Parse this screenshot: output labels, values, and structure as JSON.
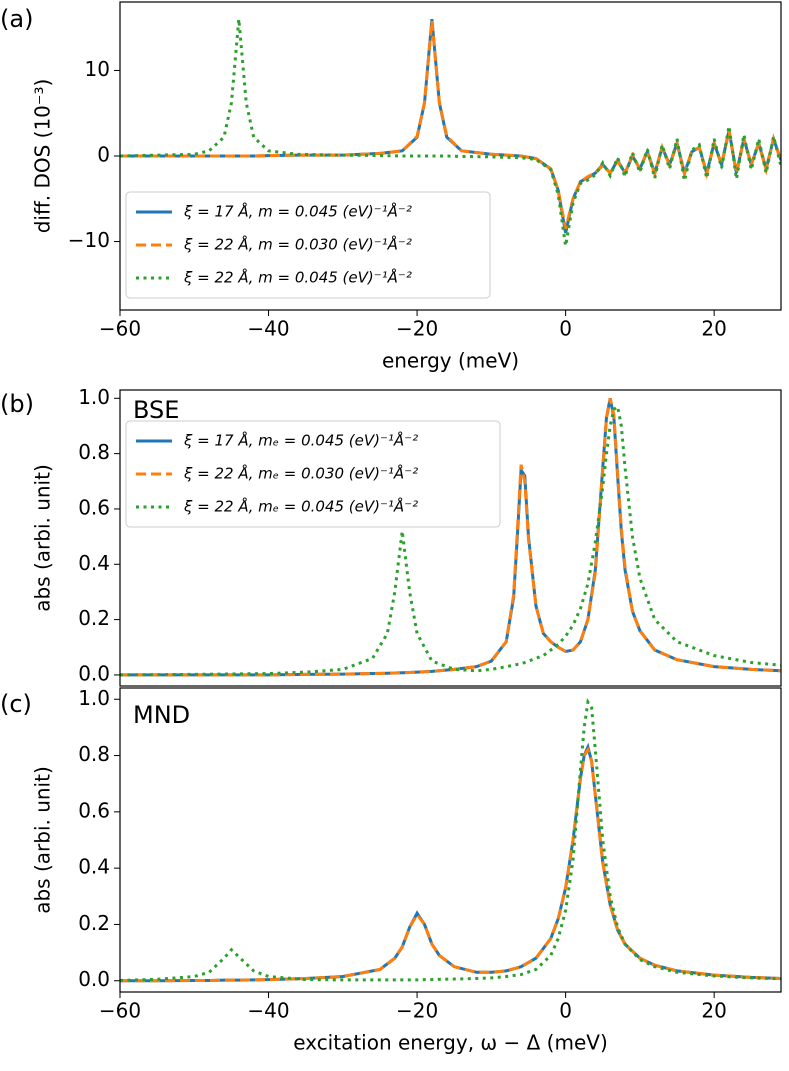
{
  "chart_data": [
    {
      "type": "line",
      "panel_label": "(a)",
      "xlabel": "energy (meV)",
      "ylabel": "diff. DOS (10⁻³)",
      "xlim": [
        -60,
        29
      ],
      "ylim": [
        -18,
        18
      ],
      "xticks": [
        {
          "value": -60,
          "label": "−60"
        },
        {
          "value": -40,
          "label": "−40"
        },
        {
          "value": -20,
          "label": "−20"
        },
        0,
        20
      ],
      "yticks": [
        {
          "value": -10,
          "label": "−10"
        },
        0,
        10
      ],
      "legend": "lower left",
      "x": [
        -60,
        -55,
        -50,
        -48,
        -46,
        -45,
        -44,
        -43,
        -42,
        -40,
        -36,
        -30,
        -25,
        -22,
        -20,
        -19,
        -18,
        -17,
        -16,
        -14,
        -10,
        -6,
        -4,
        -2,
        -1,
        0,
        1,
        2,
        3,
        4,
        5,
        6,
        7,
        8,
        9,
        10,
        11,
        12,
        13,
        14,
        15,
        16,
        17,
        18,
        19,
        20,
        21,
        22,
        23,
        24,
        25,
        26,
        27,
        28,
        29
      ],
      "series": [
        {
          "name": "ξ = 17 Å, m = 0.045 (eV)⁻¹Å⁻²",
          "color": "#1f77b4",
          "style": "solid",
          "values": [
            0,
            0,
            0,
            0,
            0,
            0,
            0,
            0,
            0,
            0.05,
            0.1,
            0.1,
            0.3,
            0.6,
            2.2,
            6.2,
            16,
            6.2,
            2.2,
            0.6,
            0.2,
            0,
            -0.3,
            -1.5,
            -4,
            -9,
            -5,
            -3,
            -2.5,
            -2,
            -1,
            -2,
            -0.5,
            -2,
            0,
            -1.5,
            0.5,
            -2,
            1,
            -1,
            1.5,
            -2,
            0.5,
            1,
            -2,
            1.5,
            -1,
            3,
            -2,
            2,
            -1,
            1.5,
            -1.5,
            2,
            -0.5
          ]
        },
        {
          "name": "ξ = 22 Å, m = 0.030 (eV)⁻¹Å⁻²",
          "color": "#ff7f0e",
          "style": "dashed",
          "values": [
            0,
            0,
            0,
            0,
            0,
            0,
            0,
            0,
            0,
            0.05,
            0.1,
            0.1,
            0.3,
            0.6,
            2.3,
            6.3,
            15.8,
            6.3,
            2.3,
            0.6,
            0.2,
            0,
            -0.3,
            -1.5,
            -4,
            -8.5,
            -5,
            -3,
            -2.4,
            -2,
            -1.1,
            -2,
            -0.6,
            -2,
            0.1,
            -1.5,
            0.6,
            -2.1,
            1,
            -1.1,
            1.4,
            -2.1,
            0.6,
            1,
            -2.1,
            1.5,
            -1,
            2.9,
            -2,
            2,
            -1,
            1.4,
            -1.6,
            2,
            -0.6
          ]
        },
        {
          "name": "ξ = 22 Å, m = 0.045 (eV)⁻¹Å⁻²",
          "color": "#2ca02c",
          "style": "dotted",
          "values": [
            0,
            0.1,
            0.2,
            0.6,
            2.2,
            6.2,
            16,
            6.2,
            2.2,
            0.6,
            0.2,
            0.1,
            0.05,
            0,
            0,
            0,
            0,
            0,
            0,
            -0.05,
            -0.1,
            -0.2,
            -0.4,
            -1.6,
            -4.5,
            -10.5,
            -5.5,
            -3.2,
            -2.8,
            -2.2,
            -0.8,
            -2.3,
            -0.2,
            -2.4,
            0.4,
            -1.9,
            0.8,
            -2.6,
            1.3,
            -1.5,
            2,
            -2.9,
            0.7,
            1.3,
            -2.6,
            2,
            -1.4,
            3.5,
            -2.7,
            2.5,
            -1.6,
            2,
            -2,
            2.3,
            -1.2
          ]
        }
      ]
    },
    {
      "type": "line",
      "panel_label": "(b)",
      "annotation": "BSE",
      "ylabel": "abs (arbi. unit)",
      "xlim": [
        -60,
        29
      ],
      "ylim": [
        -0.04,
        1.03
      ],
      "yticks": [
        {
          "value": 0,
          "label": "0.0"
        },
        0.2,
        0.4,
        0.6,
        0.8,
        {
          "value": 1,
          "label": "1.0"
        }
      ],
      "legend": "upper left",
      "x": [
        -60,
        -50,
        -40,
        -35,
        -30,
        -26,
        -24,
        -23,
        -22,
        -21,
        -20,
        -18,
        -15,
        -12,
        -10,
        -8,
        -7,
        -6.5,
        -6,
        -5.5,
        -5,
        -4,
        -3,
        -2,
        -1,
        0,
        1,
        2,
        3,
        4,
        5,
        5.5,
        6,
        6.5,
        7,
        7.5,
        8,
        9,
        10,
        12,
        15,
        20,
        25,
        29
      ],
      "series": [
        {
          "name": "ξ = 17 Å, mₑ = 0.045 (eV)⁻¹Å⁻²",
          "color": "#1f77b4",
          "style": "solid",
          "values": [
            0,
            0,
            0,
            0.002,
            0.003,
            0.005,
            0.006,
            0.007,
            0.008,
            0.009,
            0.01,
            0.013,
            0.02,
            0.03,
            0.05,
            0.12,
            0.28,
            0.5,
            0.74,
            0.72,
            0.5,
            0.25,
            0.15,
            0.12,
            0.1,
            0.085,
            0.09,
            0.12,
            0.2,
            0.38,
            0.75,
            0.93,
            1.0,
            0.93,
            0.72,
            0.52,
            0.38,
            0.23,
            0.16,
            0.09,
            0.055,
            0.03,
            0.02,
            0.015
          ]
        },
        {
          "name": "ξ = 22 Å, mₑ = 0.030 (eV)⁻¹Å⁻²",
          "color": "#ff7f0e",
          "style": "dashed",
          "values": [
            0,
            0,
            0,
            0.002,
            0.003,
            0.005,
            0.006,
            0.007,
            0.008,
            0.009,
            0.01,
            0.013,
            0.02,
            0.03,
            0.05,
            0.12,
            0.29,
            0.52,
            0.76,
            0.7,
            0.49,
            0.25,
            0.15,
            0.12,
            0.1,
            0.085,
            0.09,
            0.12,
            0.2,
            0.37,
            0.74,
            0.93,
            1.0,
            0.94,
            0.73,
            0.53,
            0.39,
            0.23,
            0.16,
            0.09,
            0.055,
            0.03,
            0.02,
            0.015
          ]
        },
        {
          "name": "ξ = 22 Å, mₑ = 0.045 (eV)⁻¹Å⁻²",
          "color": "#2ca02c",
          "style": "dotted",
          "values": [
            0,
            0.002,
            0.005,
            0.01,
            0.02,
            0.06,
            0.15,
            0.3,
            0.52,
            0.3,
            0.15,
            0.05,
            0.02,
            0.015,
            0.02,
            0.03,
            0.035,
            0.038,
            0.04,
            0.045,
            0.05,
            0.06,
            0.07,
            0.09,
            0.11,
            0.14,
            0.18,
            0.24,
            0.33,
            0.48,
            0.68,
            0.8,
            0.9,
            0.96,
            0.97,
            0.9,
            0.75,
            0.5,
            0.35,
            0.2,
            0.12,
            0.07,
            0.045,
            0.035
          ]
        }
      ]
    },
    {
      "type": "line",
      "panel_label": "(c)",
      "annotation": "MND",
      "xlabel": "excitation energy, ω − Δ (meV)",
      "ylabel": "abs (arbi. unit)",
      "xlim": [
        -60,
        29
      ],
      "ylim": [
        -0.04,
        1.04
      ],
      "xticks": [
        {
          "value": -60,
          "label": "−60"
        },
        {
          "value": -40,
          "label": "−40"
        },
        {
          "value": -20,
          "label": "−20"
        },
        0,
        20
      ],
      "yticks": [
        {
          "value": 0,
          "label": "0.0"
        },
        0.2,
        0.4,
        0.6,
        0.8,
        {
          "value": 1,
          "label": "1.0"
        }
      ],
      "x": [
        -60,
        -55,
        -50,
        -48,
        -46,
        -45,
        -44,
        -42,
        -40,
        -35,
        -30,
        -25,
        -23,
        -22,
        -21,
        -20,
        -19,
        -18,
        -17,
        -15,
        -12,
        -10,
        -8,
        -6,
        -4,
        -2,
        -1,
        0,
        1,
        2,
        2.5,
        3,
        3.5,
        4,
        5,
        6,
        7,
        8,
        10,
        12,
        15,
        20,
        25,
        29
      ],
      "series": [
        {
          "color": "#1f77b4",
          "style": "solid",
          "values": [
            0,
            0,
            0.001,
            0.001,
            0.002,
            0.002,
            0.002,
            0.003,
            0.004,
            0.008,
            0.015,
            0.04,
            0.08,
            0.12,
            0.19,
            0.24,
            0.2,
            0.13,
            0.09,
            0.05,
            0.03,
            0.03,
            0.035,
            0.05,
            0.08,
            0.15,
            0.22,
            0.33,
            0.5,
            0.72,
            0.8,
            0.83,
            0.78,
            0.66,
            0.42,
            0.27,
            0.18,
            0.13,
            0.08,
            0.055,
            0.035,
            0.02,
            0.012,
            0.008
          ]
        },
        {
          "color": "#ff7f0e",
          "style": "dashed",
          "values": [
            0,
            0,
            0.001,
            0.001,
            0.002,
            0.002,
            0.002,
            0.003,
            0.004,
            0.008,
            0.015,
            0.04,
            0.08,
            0.12,
            0.19,
            0.235,
            0.2,
            0.13,
            0.09,
            0.05,
            0.03,
            0.03,
            0.035,
            0.05,
            0.08,
            0.15,
            0.22,
            0.33,
            0.5,
            0.72,
            0.8,
            0.82,
            0.78,
            0.66,
            0.42,
            0.27,
            0.18,
            0.13,
            0.08,
            0.055,
            0.035,
            0.02,
            0.012,
            0.008
          ]
        },
        {
          "color": "#2ca02c",
          "style": "dotted",
          "values": [
            0.001,
            0.005,
            0.015,
            0.03,
            0.08,
            0.11,
            0.085,
            0.035,
            0.015,
            0.004,
            0.003,
            0.003,
            0.003,
            0.003,
            0.003,
            0.003,
            0.004,
            0.004,
            0.005,
            0.006,
            0.008,
            0.01,
            0.015,
            0.022,
            0.04,
            0.09,
            0.15,
            0.25,
            0.43,
            0.75,
            0.9,
            0.99,
            0.97,
            0.82,
            0.5,
            0.3,
            0.19,
            0.13,
            0.075,
            0.05,
            0.03,
            0.017,
            0.01,
            0.007
          ]
        }
      ]
    }
  ]
}
